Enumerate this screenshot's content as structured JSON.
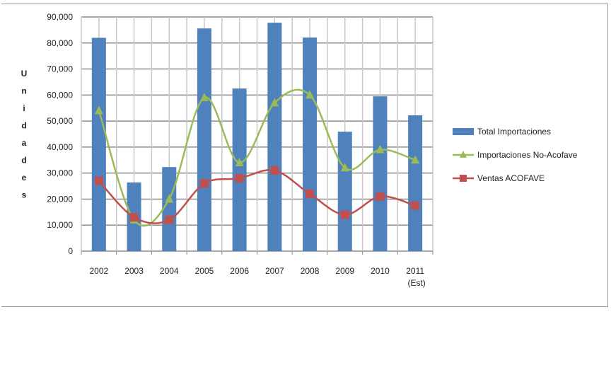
{
  "chart_data": {
    "type": "bar+line",
    "title": "",
    "xlabel": "",
    "ylabel": "Unidades",
    "ylim": [
      0,
      90000
    ],
    "yticks": [
      "0",
      "10,000",
      "20,000",
      "30,000",
      "40,000",
      "50,000",
      "60,000",
      "70,000",
      "80,000",
      "90,000"
    ],
    "categories": [
      "2002",
      "2003",
      "2004",
      "2005",
      "2006",
      "2007",
      "2008",
      "2009",
      "2010",
      "2011"
    ],
    "category_notes": {
      "2011": "(Est)"
    },
    "grid": true,
    "legend_position": "right",
    "series": [
      {
        "name": "Total Importaciones",
        "kind": "bar",
        "color": "#4f81bd",
        "values": [
          82000,
          26400,
          32300,
          85600,
          62500,
          87800,
          82100,
          45900,
          59500,
          52200
        ]
      },
      {
        "name": "Importaciones No-Acofave",
        "kind": "line",
        "marker": "triangle",
        "color": "#9bbb59",
        "values": [
          54000,
          12000,
          20000,
          59000,
          34000,
          57000,
          60000,
          32000,
          39000,
          35000
        ]
      },
      {
        "name": "Ventas ACOFAVE",
        "kind": "line",
        "marker": "square",
        "color": "#c0504d",
        "values": [
          27000,
          13000,
          12000,
          26000,
          28000,
          31000,
          22000,
          14000,
          21000,
          17500
        ]
      }
    ]
  }
}
